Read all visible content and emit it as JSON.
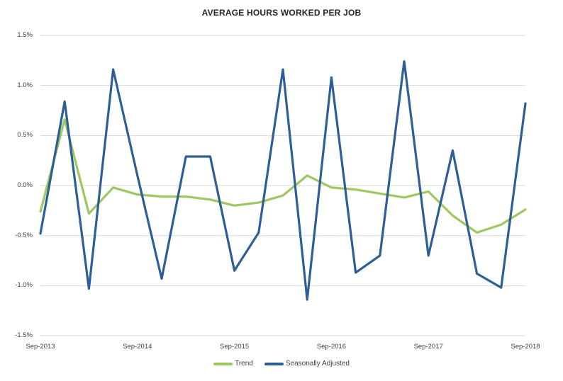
{
  "title": "AVERAGE HOURS WORKED PER JOB",
  "chart_data": {
    "type": "line",
    "title": "AVERAGE HOURS WORKED PER JOB",
    "unit": "%",
    "x": [
      "Sep-2013",
      "Dec-2013",
      "Mar-2014",
      "Jun-2014",
      "Sep-2014",
      "Dec-2014",
      "Mar-2015",
      "Jun-2015",
      "Sep-2015",
      "Dec-2015",
      "Mar-2016",
      "Jun-2016",
      "Sep-2016",
      "Dec-2016",
      "Mar-2017",
      "Jun-2017",
      "Sep-2017",
      "Dec-2017",
      "Mar-2018",
      "Jun-2018",
      "Sep-2018"
    ],
    "x_axis_tick_labels": [
      "Sep-2013",
      "Sep-2014",
      "Sep-2015",
      "Sep-2016",
      "Sep-2017",
      "Sep-2018"
    ],
    "x_axis_tick_indices": [
      0,
      4,
      8,
      12,
      16,
      20
    ],
    "y_ticks": [
      "1.5%",
      "1.0%",
      "0.5%",
      "0.0%",
      "-0.5%",
      "-1.0%",
      "-1.5%"
    ],
    "y_tick_values": [
      1.5,
      1.0,
      0.5,
      0.0,
      -0.5,
      -1.0,
      -1.5
    ],
    "ylim": [
      -1.5,
      1.5
    ],
    "grid": "horizontal",
    "gridline_color": "#d9d9d9",
    "legend_position": "bottom",
    "series": [
      {
        "name": "Trend",
        "color": "#9dc85f",
        "values": [
          -0.26,
          0.66,
          -0.28,
          -0.02,
          -0.09,
          -0.11,
          -0.11,
          -0.14,
          -0.2,
          -0.17,
          -0.1,
          0.1,
          -0.02,
          -0.04,
          -0.08,
          -0.12,
          -0.06,
          -0.3,
          -0.47,
          -0.39,
          -0.24
        ]
      },
      {
        "name": "Seasonally Adjusted",
        "color": "#2d5f96",
        "values": [
          -0.48,
          0.84,
          -1.03,
          1.16,
          0.1,
          -0.93,
          0.29,
          0.29,
          -0.85,
          -0.47,
          1.16,
          -1.14,
          1.08,
          -0.87,
          -0.7,
          1.24,
          -0.7,
          0.35,
          -0.88,
          -1.02,
          0.82
        ]
      }
    ]
  }
}
